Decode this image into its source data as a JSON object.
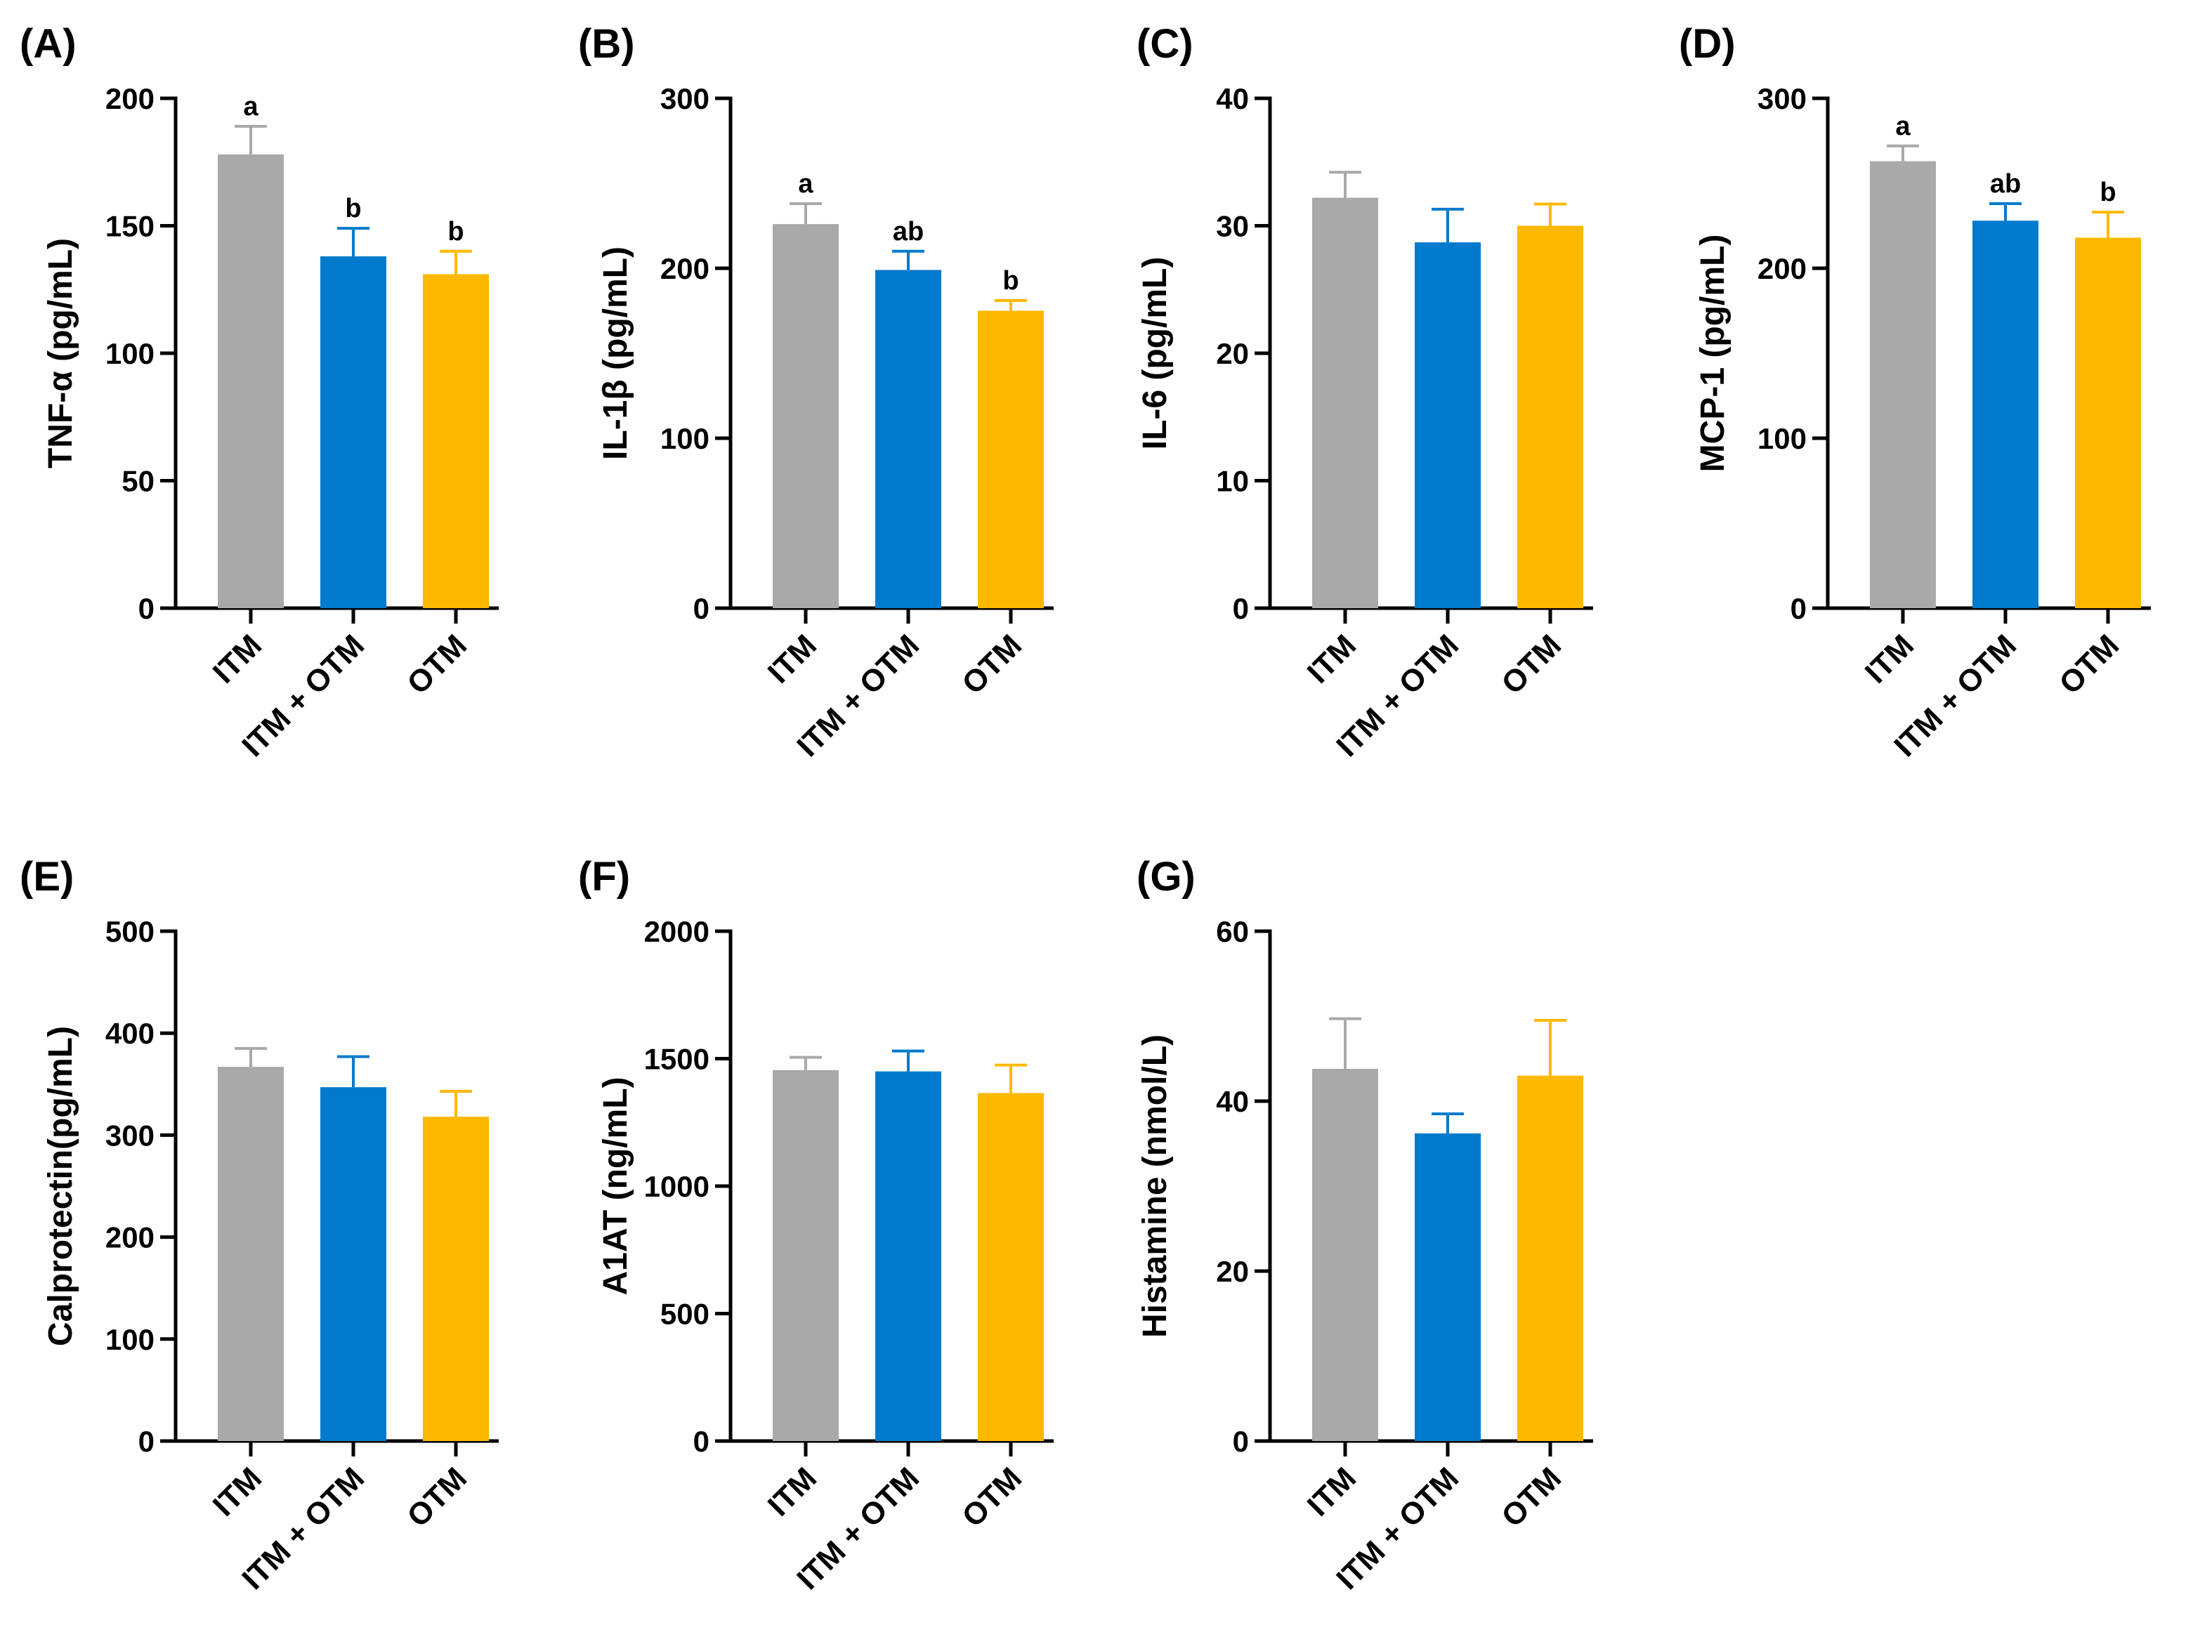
{
  "colors": {
    "axis": "#000000",
    "text": "#000000",
    "series": [
      "#A9A9A9",
      "#007ACC",
      "#FFB800"
    ]
  },
  "chart_data": [
    {
      "type": "bar",
      "panel_label": "(A)",
      "title": "",
      "ylabel": "TNF-α (pg/mL)",
      "xlabel": "",
      "categories": [
        "ITM",
        "ITM + OTM",
        "OTM"
      ],
      "values": [
        178,
        138,
        131
      ],
      "error_upper": [
        189,
        149,
        140
      ],
      "significance": [
        "a",
        "b",
        "b"
      ],
      "ylim": [
        0,
        200
      ],
      "yticks": [
        0,
        50,
        100,
        150,
        200
      ],
      "ytick_labels": [
        "0",
        "50",
        "100",
        "150",
        "200"
      ],
      "grid": false
    },
    {
      "type": "bar",
      "panel_label": "(B)",
      "title": "",
      "ylabel": "IL-1β (pg/mL)",
      "xlabel": "",
      "categories": [
        "ITM",
        "ITM + OTM",
        "OTM"
      ],
      "values": [
        226,
        199,
        175
      ],
      "error_upper": [
        238,
        210,
        181
      ],
      "significance": [
        "a",
        "ab",
        "b"
      ],
      "ylim": [
        0,
        300
      ],
      "yticks": [
        0,
        100,
        200,
        300
      ],
      "ytick_labels": [
        "0",
        "100",
        "200",
        "300"
      ],
      "grid": false
    },
    {
      "type": "bar",
      "panel_label": "(C)",
      "title": "",
      "ylabel": "IL-6 (pg/mL)",
      "xlabel": "",
      "categories": [
        "ITM",
        "ITM + OTM",
        "OTM"
      ],
      "values": [
        32.2,
        28.7,
        30.0
      ],
      "error_upper": [
        34.2,
        31.3,
        31.7
      ],
      "significance": [
        "",
        "",
        ""
      ],
      "ylim": [
        0,
        40
      ],
      "yticks": [
        0,
        10,
        20,
        30,
        40
      ],
      "ytick_labels": [
        "0",
        "10",
        "20",
        "30",
        "40"
      ],
      "grid": false
    },
    {
      "type": "bar",
      "panel_label": "(D)",
      "title": "",
      "ylabel": "MCP-1 (pg/mL)",
      "xlabel": "",
      "categories": [
        "ITM",
        "ITM + OTM",
        "OTM"
      ],
      "values": [
        263,
        228,
        218
      ],
      "error_upper": [
        272,
        238,
        233
      ],
      "significance": [
        "a",
        "ab",
        "b"
      ],
      "ylim": [
        0,
        300
      ],
      "yticks": [
        0,
        100,
        200,
        300
      ],
      "ytick_labels": [
        "0",
        "100",
        "200",
        "300"
      ],
      "grid": false
    },
    {
      "type": "bar",
      "panel_label": "(E)",
      "title": "",
      "ylabel": "Calprotectin(pg/mL)",
      "xlabel": "",
      "categories": [
        "ITM",
        "ITM + OTM",
        "OTM"
      ],
      "values": [
        367,
        347,
        318
      ],
      "error_upper": [
        385,
        377,
        343
      ],
      "significance": [
        "",
        "",
        ""
      ],
      "ylim": [
        0,
        500
      ],
      "yticks": [
        0,
        100,
        200,
        300,
        400,
        500
      ],
      "ytick_labels": [
        "0",
        "100",
        "200",
        "300",
        "400",
        "500"
      ],
      "grid": false
    },
    {
      "type": "bar",
      "panel_label": "(F)",
      "title": "",
      "ylabel": "A1AT (ng/mL)",
      "xlabel": "",
      "categories": [
        "ITM",
        "ITM + OTM",
        "OTM"
      ],
      "values": [
        1455,
        1450,
        1365
      ],
      "error_upper": [
        1505,
        1530,
        1475
      ],
      "significance": [
        "",
        "",
        ""
      ],
      "ylim": [
        0,
        2000
      ],
      "yticks": [
        0,
        500,
        1000,
        1500,
        2000
      ],
      "ytick_labels": [
        "0",
        "500",
        "1000",
        "1500",
        "2000"
      ],
      "grid": false
    },
    {
      "type": "bar",
      "panel_label": "(G)",
      "title": "",
      "ylabel": "Histamine (nmol/L)",
      "xlabel": "",
      "categories": [
        "ITM",
        "ITM + OTM",
        "OTM"
      ],
      "values": [
        43.8,
        36.2,
        43.0
      ],
      "error_upper": [
        49.7,
        38.5,
        49.5
      ],
      "significance": [
        "",
        "",
        ""
      ],
      "ylim": [
        0,
        60
      ],
      "yticks": [
        0,
        20,
        40,
        60
      ],
      "ytick_labels": [
        "0",
        "20",
        "40",
        "60"
      ],
      "grid": false
    }
  ]
}
